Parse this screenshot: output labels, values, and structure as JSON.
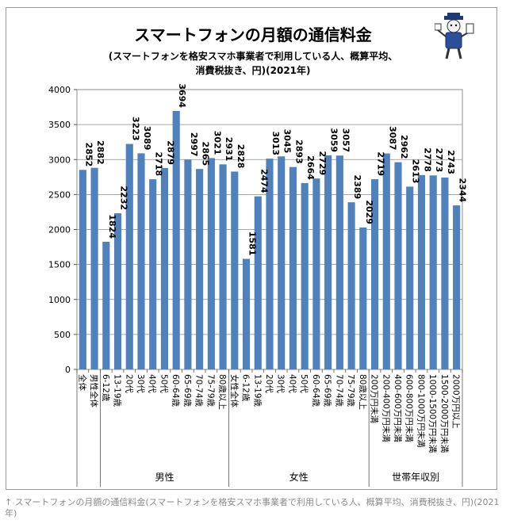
{
  "chart_data": {
    "type": "bar",
    "title": "スマートフォンの月額の通信料金",
    "subtitle": [
      "(スマートフォンを格安スマホ事業者で利用している人、概算平均、",
      "消費税抜き、円)(2021年)"
    ],
    "categories": [
      "全体",
      "男性全体",
      "6-12歳",
      "13-19歳",
      "20代",
      "30代",
      "40代",
      "50代",
      "60-64歳",
      "65-69歳",
      "70-74歳",
      "75-79歳",
      "80歳以上",
      "女性全体",
      "6-12歳",
      "13-19歳",
      "20代",
      "30代",
      "40代",
      "50代",
      "60-64歳",
      "65-69歳",
      "70-74歳",
      "75-79歳",
      "80歳以上",
      "200万円未満",
      "200-400万円未満",
      "400-600万円未満",
      "600-800万円未満",
      "800-1000万円未満",
      "1000-1500万円未満",
      "1500-2000万円未満",
      "2000万円以上"
    ],
    "values": [
      2852,
      2882,
      1824,
      2232,
      3223,
      3089,
      2718,
      2879,
      3694,
      2997,
      2865,
      3021,
      2931,
      2828,
      1581,
      2474,
      3013,
      3045,
      2893,
      2664,
      2729,
      3059,
      3057,
      2389,
      2029,
      2719,
      3087,
      2962,
      2613,
      2778,
      2773,
      2743,
      2344
    ],
    "groups": [
      {
        "label": "男性",
        "start": 2,
        "end": 12
      },
      {
        "label": "女性",
        "start": 13,
        "end": 24
      },
      {
        "label": "世帯年収別",
        "start": 25,
        "end": 32
      }
    ],
    "yticks": [
      0,
      500,
      1000,
      1500,
      2000,
      2500,
      3000,
      3500,
      4000
    ],
    "ylim": [
      0,
      4000
    ],
    "grid": true,
    "bar_color": "#4f81bd"
  },
  "caption": "↑ スマートフォンの月額の通信料金(スマートフォンを格安スマホ事業者で利用している人、概算平均、消費税抜き、円)(2021年)"
}
